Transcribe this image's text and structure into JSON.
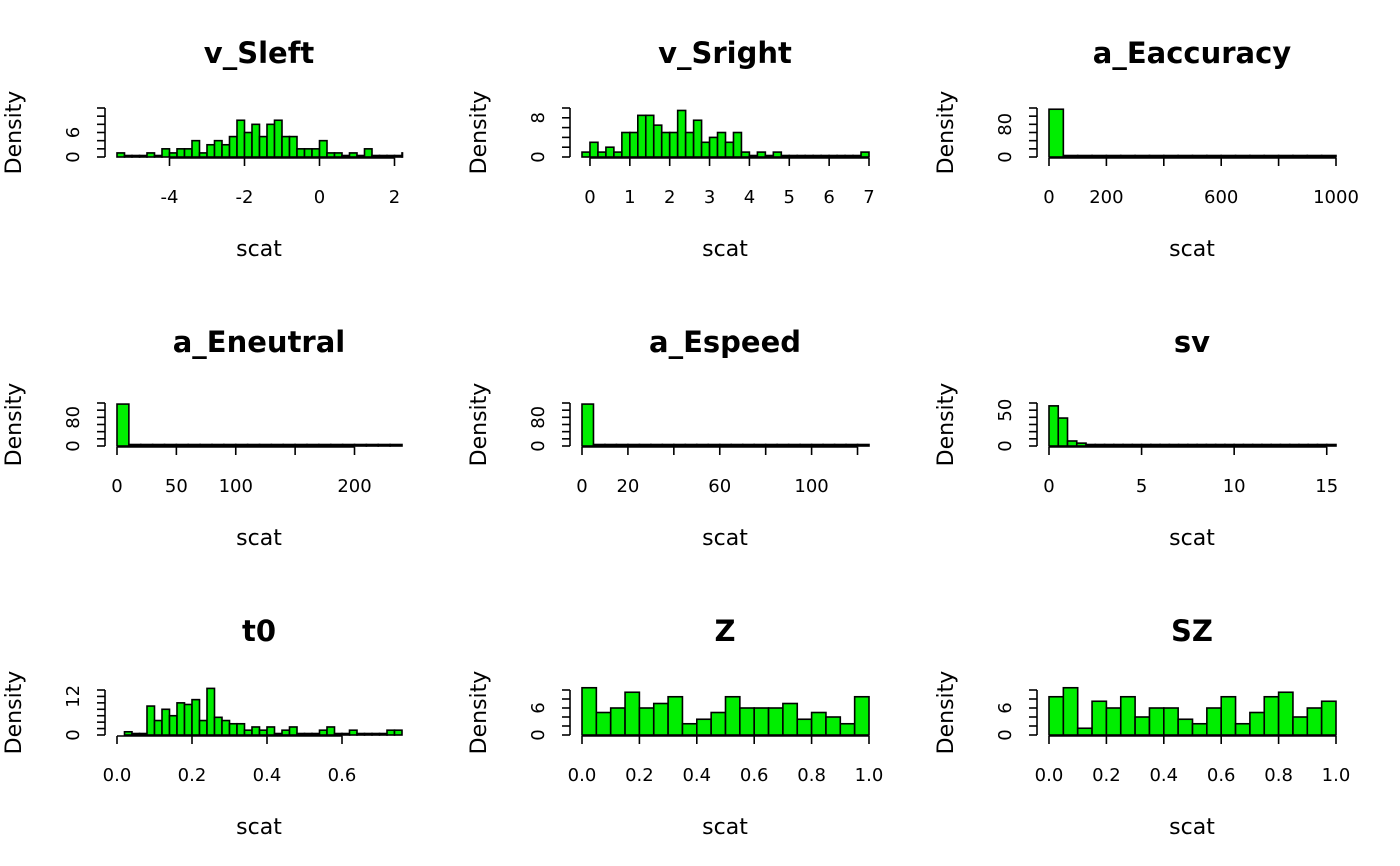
{
  "colors": {
    "bar_fill": "#00ee00",
    "bar_stroke": "#000000",
    "background": "#ffffff"
  },
  "chart_data": [
    {
      "type": "bar",
      "title": "v_Sleft",
      "xlabel": "scat",
      "ylabel": "Density",
      "xlim": [
        -5.4,
        2.2
      ],
      "ylim": [
        0,
        12
      ],
      "xticks": [
        -4,
        -2,
        0,
        2
      ],
      "xtick_labels": [
        "-4",
        "-2",
        "0",
        "2"
      ],
      "xtick_marks": [
        -4,
        -2,
        0,
        2
      ],
      "yticks": [
        0,
        6
      ],
      "ytick_labels": [
        "0",
        "6"
      ],
      "yminor": [
        0,
        2,
        4,
        6,
        8,
        10,
        12
      ],
      "bins": {
        "start": -5.4,
        "width": 0.2,
        "values": [
          1,
          0,
          0,
          0,
          1,
          0,
          2,
          1,
          2,
          2,
          4,
          1,
          3,
          4,
          3,
          5,
          9,
          6,
          8,
          5,
          8,
          9,
          5,
          5,
          2,
          2,
          2,
          4,
          1,
          1,
          0,
          1,
          0,
          2,
          0,
          0,
          0,
          0,
          1
        ]
      }
    },
    {
      "type": "bar",
      "title": "v_Sright",
      "xlabel": "scat",
      "ylabel": "Density",
      "xlim": [
        -0.2,
        7
      ],
      "ylim": [
        0,
        10
      ],
      "xticks": [
        0,
        1,
        2,
        3,
        4,
        5,
        6,
        7
      ],
      "xtick_labels": [
        "0",
        "1",
        "2",
        "3",
        "4",
        "5",
        "6",
        "7"
      ],
      "xtick_marks": [
        0,
        1,
        2,
        3,
        4,
        5,
        6,
        7
      ],
      "yticks": [
        0,
        8
      ],
      "ytick_labels": [
        "0",
        "8"
      ],
      "yminor": [
        0,
        2,
        4,
        6,
        8,
        10
      ],
      "bins": {
        "start": -0.2,
        "width": 0.2,
        "values": [
          1,
          3,
          1,
          2,
          1,
          5,
          5,
          8.5,
          8.5,
          6.5,
          5,
          5,
          9.5,
          5,
          7.5,
          3,
          4,
          5,
          3,
          5,
          1,
          0,
          1,
          0,
          1,
          0,
          0,
          0,
          0,
          0,
          0,
          0,
          0,
          0,
          0,
          1
        ]
      }
    },
    {
      "type": "bar",
      "title": "a_Eaccuracy",
      "xlabel": "scat",
      "ylabel": "Density",
      "xlim": [
        0,
        1000
      ],
      "ylim": [
        0,
        120
      ],
      "xticks": [
        0,
        200,
        600,
        1000
      ],
      "xtick_labels": [
        "0",
        "200",
        "600",
        "1000"
      ],
      "xtick_marks": [
        0,
        200,
        400,
        600,
        800,
        1000
      ],
      "yticks": [
        0,
        80
      ],
      "ytick_labels": [
        "0",
        "80"
      ],
      "yminor": [
        0,
        20,
        40,
        60,
        80,
        100,
        120
      ],
      "bins": {
        "start": 0,
        "width": 50,
        "values": [
          117,
          3,
          1,
          1,
          1,
          1,
          1,
          1,
          1,
          1,
          1,
          1,
          1,
          1,
          1,
          1,
          1,
          2,
          1,
          2
        ]
      }
    },
    {
      "type": "bar",
      "title": "a_Eneutral",
      "xlabel": "scat",
      "ylabel": "Density",
      "xlim": [
        0,
        240
      ],
      "ylim": [
        0,
        120
      ],
      "xticks": [
        0,
        50,
        100,
        200
      ],
      "xtick_labels": [
        "0",
        "50",
        "100",
        "200"
      ],
      "xtick_marks": [
        0,
        50,
        100,
        150,
        200
      ],
      "yticks": [
        0,
        80
      ],
      "ytick_labels": [
        "0",
        "80"
      ],
      "yminor": [
        0,
        20,
        40,
        60,
        80,
        100,
        120
      ],
      "bins": {
        "start": 0,
        "width": 10,
        "values": [
          117,
          2,
          3,
          3,
          3,
          1,
          1,
          1,
          1,
          1,
          1,
          1,
          1,
          1,
          1,
          1,
          1,
          1,
          1,
          1,
          1,
          1,
          1,
          2
        ]
      }
    },
    {
      "type": "bar",
      "title": "a_Espeed",
      "xlabel": "scat",
      "ylabel": "Density",
      "xlim": [
        0,
        125
      ],
      "ylim": [
        0,
        120
      ],
      "xticks": [
        0,
        20,
        60,
        100
      ],
      "xtick_labels": [
        "0",
        "20",
        "60",
        "100"
      ],
      "xtick_marks": [
        0,
        20,
        40,
        60,
        80,
        100,
        120
      ],
      "yticks": [
        0,
        80
      ],
      "ytick_labels": [
        "0",
        "80"
      ],
      "yminor": [
        0,
        20,
        40,
        60,
        80,
        100,
        120
      ],
      "bins": {
        "start": 0,
        "width": 5,
        "values": [
          117,
          4,
          2,
          2,
          1,
          1,
          1,
          1,
          1,
          1,
          1,
          1,
          1,
          1,
          2,
          1,
          1,
          1,
          1,
          1,
          1,
          1,
          1,
          1,
          2
        ]
      }
    },
    {
      "type": "bar",
      "title": "sv",
      "xlabel": "scat",
      "ylabel": "Density",
      "xlim": [
        0,
        15.5
      ],
      "ylim": [
        0,
        60
      ],
      "xticks": [
        0,
        5,
        10,
        15
      ],
      "xtick_labels": [
        "0",
        "5",
        "10",
        "15"
      ],
      "xtick_marks": [
        0,
        5,
        10,
        15
      ],
      "yticks": [
        0,
        50
      ],
      "ytick_labels": [
        "0",
        "50"
      ],
      "yminor": [
        0,
        10,
        20,
        30,
        40,
        50,
        60
      ],
      "bins": {
        "start": 0,
        "width": 0.5,
        "values": [
          56,
          39,
          7,
          4,
          1,
          1,
          1,
          1,
          1,
          1,
          1,
          1,
          1,
          1,
          1,
          1,
          1,
          1,
          1,
          1,
          1,
          1,
          1,
          1,
          1,
          1,
          1,
          1,
          1,
          1,
          2
        ]
      }
    },
    {
      "type": "bar",
      "title": "t0",
      "xlabel": "scat",
      "ylabel": "Density",
      "xlim": [
        0,
        0.76
      ],
      "ylim": [
        0,
        14
      ],
      "xticks": [
        0.0,
        0.2,
        0.4,
        0.6
      ],
      "xtick_labels": [
        "0.0",
        "0.2",
        "0.4",
        "0.6"
      ],
      "xtick_marks": [
        0.0,
        0.2,
        0.4,
        0.6
      ],
      "yticks": [
        0,
        12
      ],
      "ytick_labels": [
        "0",
        "12"
      ],
      "yminor": [
        0,
        2,
        4,
        6,
        8,
        10,
        12,
        14
      ],
      "bins": {
        "start": 0.02,
        "width": 0.02,
        "values": [
          1,
          0,
          0,
          9,
          4.5,
          8,
          6,
          10,
          9.5,
          11,
          4.5,
          14.5,
          5.5,
          4.5,
          3.5,
          3.5,
          1.5,
          2.5,
          1.5,
          2.5,
          0,
          1.5,
          2.5,
          0,
          0,
          0,
          1.5,
          2.5,
          0,
          0,
          1.5,
          0,
          0,
          0,
          0,
          1.5,
          1.5
        ]
      }
    },
    {
      "type": "bar",
      "title": "Z",
      "xlabel": "scat",
      "ylabel": "Density",
      "xlim": [
        0,
        1
      ],
      "ylim": [
        0,
        10
      ],
      "xticks": [
        0.0,
        0.2,
        0.4,
        0.6,
        0.8,
        1.0
      ],
      "xtick_labels": [
        "0.0",
        "0.2",
        "0.4",
        "0.6",
        "0.8",
        "1.0"
      ],
      "xtick_marks": [
        0.0,
        0.2,
        0.4,
        0.6,
        0.8,
        1.0
      ],
      "yticks": [
        0,
        6
      ],
      "ytick_labels": [
        "0",
        "6"
      ],
      "yminor": [
        0,
        2,
        4,
        6,
        8,
        10
      ],
      "bins": {
        "start": 0,
        "width": 0.05,
        "values": [
          10.5,
          5,
          6,
          9.5,
          6,
          7,
          8.5,
          2.5,
          3.5,
          5,
          8.5,
          6,
          6,
          6,
          7,
          3.5,
          5,
          4,
          2.5,
          8.5
        ]
      }
    },
    {
      "type": "bar",
      "title": "SZ",
      "xlabel": "scat",
      "ylabel": "Density",
      "xlim": [
        0,
        1
      ],
      "ylim": [
        0,
        10
      ],
      "xticks": [
        0.0,
        0.2,
        0.4,
        0.6,
        0.8,
        1.0
      ],
      "xtick_labels": [
        "0.0",
        "0.2",
        "0.4",
        "0.6",
        "0.8",
        "1.0"
      ],
      "xtick_marks": [
        0.0,
        0.2,
        0.4,
        0.6,
        0.8,
        1.0
      ],
      "yticks": [
        0,
        6
      ],
      "ytick_labels": [
        "0",
        "6"
      ],
      "yminor": [
        0,
        2,
        4,
        6,
        8,
        10
      ],
      "bins": {
        "start": 0,
        "width": 0.05,
        "values": [
          8.5,
          10.5,
          1.5,
          7.5,
          6,
          8.5,
          4,
          6,
          6,
          3.5,
          2.5,
          6,
          8.5,
          2.5,
          5,
          8.5,
          9.5,
          4,
          6,
          7.5
        ]
      }
    }
  ]
}
